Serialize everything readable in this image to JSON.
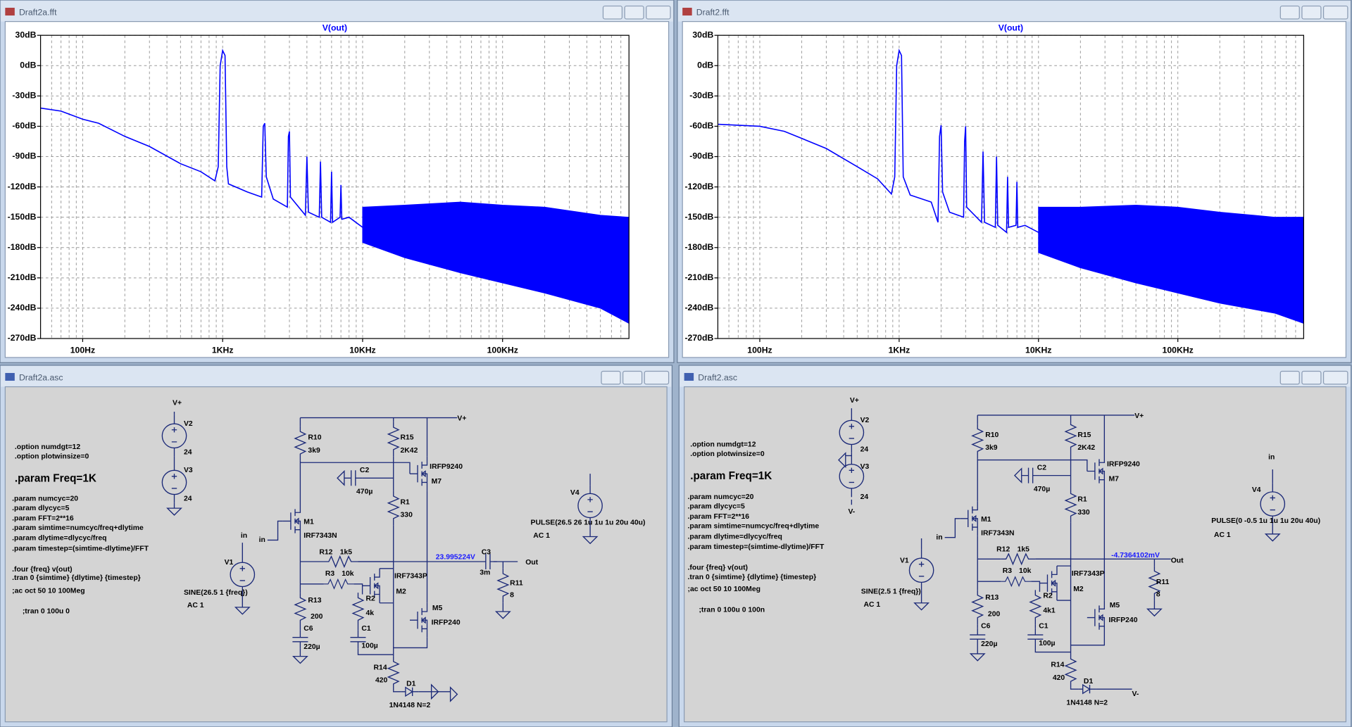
{
  "windows": [
    {
      "title": "Draft2a.fft",
      "plot": {
        "title": "V(out)",
        "xscale": "log",
        "grid": true,
        "color": "#0000ff",
        "xlim": [
          50,
          800000
        ],
        "ylim": [
          -270,
          30
        ],
        "xticks": [
          {
            "value": 100,
            "label": "100Hz"
          },
          {
            "value": 1000,
            "label": "1KHz"
          },
          {
            "value": 10000,
            "label": "10KHz"
          },
          {
            "value": 100000,
            "label": "100KHz"
          }
        ],
        "yticks": [
          {
            "value": 30,
            "label": "30dB"
          },
          {
            "value": 0,
            "label": "0dB"
          },
          {
            "value": -30,
            "label": "-30dB"
          },
          {
            "value": -60,
            "label": "-60dB"
          },
          {
            "value": -90,
            "label": "-90dB"
          },
          {
            "value": -120,
            "label": "-120dB"
          },
          {
            "value": -150,
            "label": "-150dB"
          },
          {
            "value": -180,
            "label": "-180dB"
          },
          {
            "value": -210,
            "label": "-210dB"
          },
          {
            "value": -240,
            "label": "-240dB"
          },
          {
            "value": -270,
            "label": "-270dB"
          }
        ],
        "trace": {
          "x": [
            50,
            70,
            100,
            130,
            200,
            300,
            500,
            700,
            880,
            930,
            960,
            1000,
            1040,
            1070,
            1100,
            1500,
            1900,
            1950,
            2000,
            2050,
            2300,
            2900,
            2950,
            3000,
            3050,
            3900,
            4000,
            4100,
            4900,
            5000,
            5100,
            5900,
            6000,
            6100,
            6900,
            7000,
            7100,
            8000,
            10000
          ],
          "y": [
            -42,
            -45,
            -53,
            -57,
            -70,
            -80,
            -97,
            -105,
            -114,
            -100,
            0,
            15,
            10,
            -100,
            -117,
            -125,
            -130,
            -60,
            -57,
            -110,
            -132,
            -140,
            -70,
            -65,
            -130,
            -148,
            -90,
            -145,
            -150,
            -95,
            -150,
            -155,
            -105,
            -155,
            -150,
            -118,
            -152,
            -150,
            -160
          ]
        },
        "noise": {
          "x": [
            10000,
            20000,
            50000,
            100000,
            200000,
            500000,
            800000
          ],
          "upper": [
            -140,
            -138,
            -135,
            -138,
            -140,
            -148,
            -150
          ],
          "lower": [
            -175,
            -190,
            -205,
            -215,
            -225,
            -240,
            -255
          ]
        }
      }
    },
    {
      "title": "Draft2.fft",
      "plot": {
        "title": "V(out)",
        "xscale": "log",
        "grid": true,
        "color": "#0000ff",
        "xlim": [
          50,
          800000
        ],
        "ylim": [
          -270,
          30
        ],
        "xticks": [
          {
            "value": 100,
            "label": "100Hz"
          },
          {
            "value": 1000,
            "label": "1KHz"
          },
          {
            "value": 10000,
            "label": "10KHz"
          },
          {
            "value": 100000,
            "label": "100KHz"
          }
        ],
        "yticks": [
          {
            "value": 30,
            "label": "30dB"
          },
          {
            "value": 0,
            "label": "0dB"
          },
          {
            "value": -30,
            "label": "-30dB"
          },
          {
            "value": -60,
            "label": "-60dB"
          },
          {
            "value": -90,
            "label": "-90dB"
          },
          {
            "value": -120,
            "label": "-120dB"
          },
          {
            "value": -150,
            "label": "-150dB"
          },
          {
            "value": -180,
            "label": "-180dB"
          },
          {
            "value": -210,
            "label": "-210dB"
          },
          {
            "value": -240,
            "label": "-240dB"
          },
          {
            "value": -270,
            "label": "-270dB"
          }
        ],
        "trace": {
          "x": [
            50,
            100,
            150,
            200,
            300,
            500,
            700,
            880,
            930,
            960,
            1000,
            1040,
            1070,
            1200,
            1700,
            1900,
            1950,
            2000,
            2050,
            2300,
            2900,
            2950,
            3000,
            3050,
            3900,
            4000,
            4100,
            4900,
            5000,
            5100,
            5900,
            6000,
            6100,
            6900,
            7000,
            7100,
            8000,
            10000
          ],
          "y": [
            -58,
            -60,
            -65,
            -72,
            -82,
            -100,
            -112,
            -127,
            -110,
            0,
            15,
            10,
            -110,
            -128,
            -135,
            -155,
            -70,
            -59,
            -125,
            -145,
            -150,
            -75,
            -60,
            -140,
            -155,
            -85,
            -155,
            -160,
            -90,
            -158,
            -165,
            -110,
            -160,
            -158,
            -115,
            -160,
            -158,
            -165
          ]
        },
        "noise": {
          "x": [
            10000,
            20000,
            50000,
            100000,
            200000,
            500000,
            800000
          ],
          "upper": [
            -140,
            -140,
            -138,
            -140,
            -145,
            -150,
            -150
          ],
          "lower": [
            -185,
            -200,
            -215,
            -225,
            -235,
            -245,
            -255
          ]
        }
      }
    },
    {
      "title": "Draft2a.asc",
      "labels": [
        "V+",
        "V2",
        "24",
        "V3",
        "24",
        ".option numdgt=12",
        ".option plotwinsize=0",
        ".param Freq=1K",
        ".param numcyc=20",
        ".param dlycyc=5",
        ".param FFT=2**16",
        ".param simtime=numcyc/freq+dlytime",
        ".param dlytime=dlycyc/freq",
        ".param timestep=(simtime-dlytime)/FFT",
        ".four {freq} v(out)",
        ".tran 0 {simtime} {dlytime} {timestep}",
        ";ac oct 50 10 100Meg",
        ";tran 0 100u 0",
        "R10",
        "3k9",
        "R15",
        "2K42",
        "V+",
        "IRFP9240",
        "M7",
        "C2",
        "470µ",
        "R1",
        "330",
        "M1",
        "IRF7343N",
        "in",
        "R12",
        "1k5",
        "R3",
        "10k",
        "23.995224V",
        "C3",
        "3m",
        "Out",
        "R11",
        "8",
        "IRF7343P",
        "M2",
        "R2",
        "4k",
        "C1",
        "100µ",
        "M5",
        "IRFP240",
        "R13",
        "200",
        "C6",
        "220µ",
        "R14",
        "420",
        "D1",
        "1N4148 N=2",
        "V1",
        "in",
        "SINE(26.5 1 {freq})",
        "AC 1",
        "V4",
        "PULSE(26.5 26 1u 1u 1u 20u 40u)",
        "AC 1"
      ]
    },
    {
      "title": "Draft2.asc",
      "labels": [
        "V+",
        "V2",
        "24",
        "V3",
        "24",
        "V-",
        ".option numdgt=12",
        ".option plotwinsize=0",
        ".param Freq=1K",
        ".param numcyc=20",
        ".param dlycyc=5",
        ".param FFT=2**16",
        ".param simtime=numcyc/freq+dlytime",
        ".param dlytime=dlycyc/freq",
        ".param timestep=(simtime-dlytime)/FFT",
        ".four {freq} v(out)",
        ".tran 0 {simtime} {dlytime} {timestep}",
        ";ac oct 50 10 100Meg",
        ";tran 0 100u 0 100n",
        "R10",
        "3k9",
        "R15",
        "2K42",
        "V+",
        "IRFP9240",
        "M7",
        "C2",
        "470µ",
        "R1",
        "330",
        "M1",
        "IRF7343N",
        "in",
        "R12",
        "1k5",
        "R3",
        "10k",
        "-4.7364102mV",
        "Out",
        "R11",
        "8",
        "IRF7343P",
        "M2",
        "R2",
        "4k1",
        "C1",
        "100µ",
        "M5",
        "IRFP240",
        "R13",
        "200",
        "C6",
        "220µ",
        "R14",
        "420",
        "D1",
        "1N4148 N=2",
        "V-",
        "V1",
        "SINE(2.5 1 {freq})",
        "AC 1",
        "V4",
        "PULSE(0 -0.5 1u 1u 1u 20u 40u)",
        "AC 1",
        "in"
      ]
    }
  ]
}
